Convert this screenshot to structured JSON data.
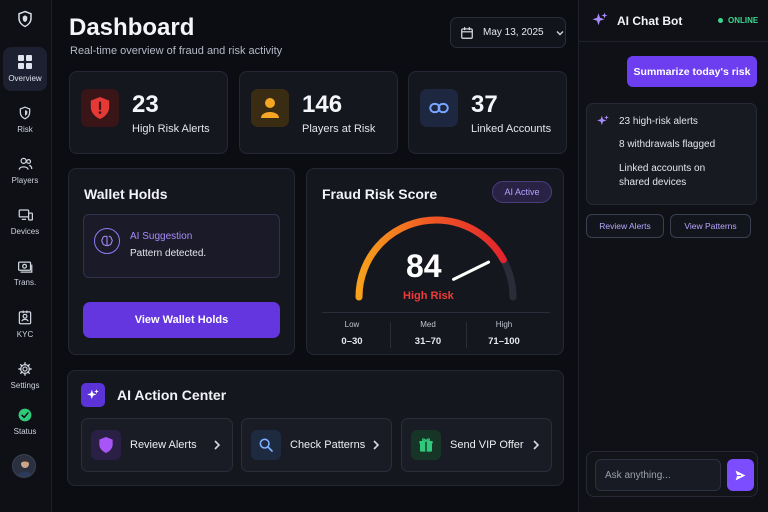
{
  "sidebar": {
    "items": [
      {
        "label": "Overview",
        "icon": "grid-icon"
      },
      {
        "label": "Risk",
        "icon": "shield-icon"
      },
      {
        "label": "Players",
        "icon": "users-icon"
      },
      {
        "label": "Devices",
        "icon": "devices-icon"
      },
      {
        "label": "Trans.",
        "icon": "transactions-icon"
      },
      {
        "label": "KYC",
        "icon": "id-card-icon"
      },
      {
        "label": "Settings",
        "icon": "gear-icon"
      },
      {
        "label": "Status",
        "icon": "check-circle-icon"
      }
    ]
  },
  "header": {
    "title": "Dashboard",
    "subtitle": "Real-time overview of fraud and risk activity",
    "date": "May 13, 2025"
  },
  "stats": [
    {
      "value": "23",
      "label": "High Risk Alerts",
      "color": "#e53935"
    },
    {
      "value": "146",
      "label": "Players at Risk",
      "color": "#f5a623"
    },
    {
      "value": "37",
      "label": "Linked Accounts",
      "color": "#7aa6ff"
    }
  ],
  "wallet": {
    "title": "Wallet Holds",
    "suggestion_title": "AI Suggestion",
    "suggestion_text": "Pattern detected.",
    "button": "View Wallet Holds"
  },
  "fraud": {
    "title": "Fraud Risk Score",
    "badge": "AI Active",
    "score": "84",
    "score_value": 84,
    "score_max": 100,
    "level": "High Risk",
    "ranges": [
      {
        "label": "Low",
        "range": "0–30"
      },
      {
        "label": "Med",
        "range": "31–70"
      },
      {
        "label": "High",
        "range": "71–100"
      }
    ]
  },
  "actions": {
    "title": "AI Action Center",
    "buttons": [
      {
        "label": "Review Alerts"
      },
      {
        "label": "Check Patterns"
      },
      {
        "label": "Send VIP Offer"
      }
    ]
  },
  "chat": {
    "title": "AI Chat Bot",
    "status": "ONLINE",
    "user_message": "Summarize today's risk",
    "bot_lines": [
      "23 high-risk alerts",
      "8 withdrawals flagged",
      "Linked accounts on",
      "shared devices"
    ],
    "chips": [
      "Review Alerts",
      "View Patterns"
    ],
    "placeholder": "Ask anything..."
  },
  "colors": {
    "accent": "#6d3ef0",
    "danger": "#ee3b3b",
    "online": "#3dd68c"
  }
}
